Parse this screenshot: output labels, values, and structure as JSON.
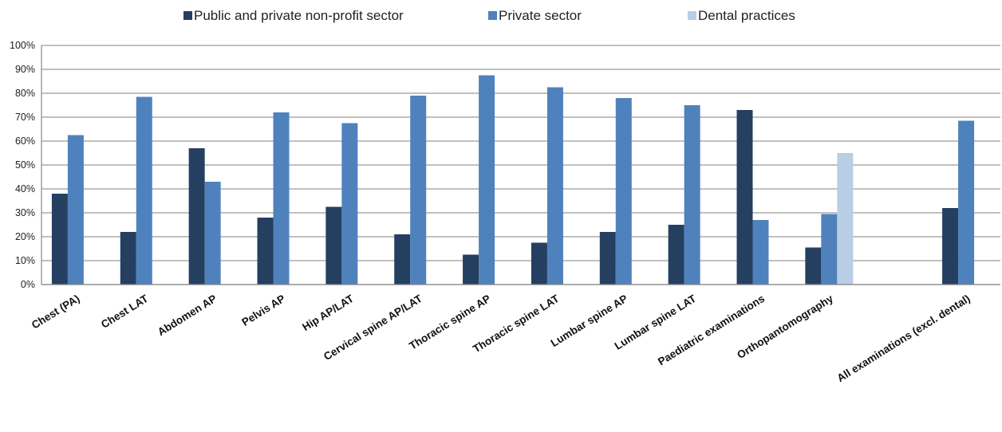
{
  "chart_data": {
    "type": "bar",
    "title": "",
    "xlabel": "",
    "ylabel": "",
    "ylim": [
      0,
      100
    ],
    "y_tick_format": "percent",
    "y_ticks": [
      "0%",
      "10%",
      "20%",
      "30%",
      "40%",
      "50%",
      "60%",
      "70%",
      "80%",
      "90%",
      "100%"
    ],
    "grid": true,
    "legend_position": "top",
    "categories": [
      "Chest (PA)",
      "Chest LAT",
      "Abdomen AP",
      "Pelvis AP",
      "Hip AP/LAT",
      "Cervical spine AP/LAT",
      "Thoracic spine AP",
      "Thoracic spine LAT",
      "Lumbar spine AP",
      "Lumbar spine LAT",
      "Paediatric examinations",
      "Orthopantomography",
      "",
      "All examinations (excl. dental)"
    ],
    "series": [
      {
        "name": "Public and private non-profit sector",
        "color": "#243f60",
        "values": [
          38,
          22,
          57,
          28,
          32.5,
          21,
          12.5,
          17.5,
          22,
          25,
          73,
          15.5,
          null,
          32
        ]
      },
      {
        "name": "Private sector",
        "color": "#4f81bd",
        "values": [
          62.5,
          78.5,
          43,
          72,
          67.5,
          79,
          87.5,
          82.5,
          78,
          75,
          27,
          29.5,
          null,
          68.5
        ]
      },
      {
        "name": "Dental practices",
        "color": "#b9cde5",
        "values": [
          null,
          null,
          null,
          null,
          null,
          null,
          null,
          null,
          null,
          null,
          null,
          55,
          null,
          null
        ]
      }
    ]
  }
}
